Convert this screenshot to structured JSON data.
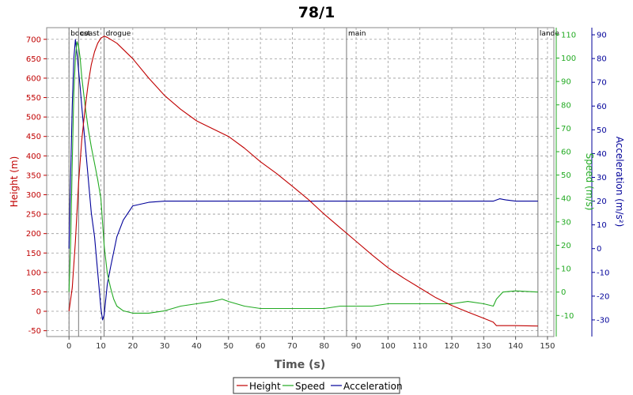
{
  "chart_data": {
    "type": "line",
    "title": "78/1",
    "xlabel": "Time (s)",
    "xlim": [
      -7,
      152
    ],
    "xticks": [
      0,
      10,
      20,
      30,
      40,
      50,
      60,
      70,
      80,
      90,
      100,
      110,
      120,
      130,
      140,
      150
    ],
    "axes": {
      "height": {
        "label": "Height (m)",
        "ylim": [
          -65,
          730
        ],
        "ticks": [
          -50,
          0,
          50,
          100,
          150,
          200,
          250,
          300,
          350,
          400,
          450,
          500,
          550,
          600,
          650,
          700
        ],
        "color": "#c00000",
        "position": "left"
      },
      "speed": {
        "label": "Speed (m/s)",
        "ylim": [
          -19,
          113
        ],
        "ticks": [
          -10,
          0,
          10,
          20,
          30,
          40,
          50,
          60,
          70,
          80,
          90,
          100,
          110
        ],
        "color": "#22aa22",
        "position": "right-inner"
      },
      "acceleration": {
        "label": "Acceleration (m/s²)",
        "ylim": [
          -37,
          93
        ],
        "ticks": [
          -30,
          -20,
          -10,
          0,
          10,
          20,
          30,
          40,
          50,
          60,
          70,
          80,
          90
        ],
        "color": "#000099",
        "position": "right-outer"
      }
    },
    "events": [
      {
        "label": "boost",
        "t": 0
      },
      {
        "label": "coast",
        "t": 3
      },
      {
        "label": "drogue",
        "t": 11
      },
      {
        "label": "main",
        "t": 87
      },
      {
        "label": "lande",
        "t": 147
      }
    ],
    "series": [
      {
        "name": "Height",
        "axis": "height",
        "color": "#c00000",
        "x": [
          0,
          1,
          2,
          3,
          4,
          5,
          6,
          7,
          8,
          9,
          10,
          11,
          12,
          15,
          20,
          25,
          30,
          35,
          40,
          45,
          50,
          55,
          60,
          65,
          70,
          75,
          80,
          85,
          90,
          95,
          100,
          105,
          110,
          115,
          120,
          125,
          130,
          133,
          134,
          140,
          147
        ],
        "y": [
          0,
          60,
          180,
          330,
          440,
          520,
          585,
          635,
          668,
          690,
          703,
          708,
          705,
          690,
          650,
          600,
          555,
          520,
          490,
          470,
          450,
          420,
          385,
          355,
          322,
          288,
          250,
          215,
          180,
          145,
          112,
          85,
          60,
          35,
          15,
          -2,
          -18,
          -28,
          -37,
          -37,
          -38
        ]
      },
      {
        "name": "Speed",
        "axis": "speed",
        "color": "#22aa22",
        "x": [
          0,
          0.5,
          1,
          1.5,
          2,
          2.5,
          3,
          3.5,
          4,
          5,
          6,
          7,
          8,
          9,
          10,
          11,
          12,
          13,
          14,
          15,
          17,
          20,
          25,
          30,
          35,
          40,
          45,
          48,
          50,
          55,
          60,
          65,
          70,
          75,
          80,
          85,
          90,
          95,
          100,
          105,
          110,
          115,
          120,
          125,
          130,
          133,
          134,
          136,
          140,
          147
        ],
        "y": [
          0,
          20,
          55,
          85,
          100,
          107,
          105,
          100,
          92,
          80,
          70,
          62,
          55,
          48,
          40,
          20,
          8,
          2,
          -3,
          -6,
          -8,
          -9,
          -9,
          -8,
          -6,
          -5,
          -4,
          -3,
          -4,
          -6,
          -7,
          -7,
          -7,
          -7,
          -7,
          -6,
          -6,
          -6,
          -5,
          -5,
          -5,
          -5,
          -5,
          -4,
          -5,
          -6,
          -3,
          0,
          0.5,
          0
        ]
      },
      {
        "name": "Acceleration",
        "axis": "acceleration",
        "color": "#000099",
        "x": [
          0,
          0.5,
          1,
          1.5,
          2,
          2.5,
          3,
          3.5,
          4,
          5,
          6,
          7,
          8,
          9,
          10,
          10.5,
          11,
          12,
          13,
          15,
          17,
          20,
          25,
          30,
          40,
          50,
          60,
          70,
          80,
          90,
          100,
          110,
          120,
          130,
          133,
          135,
          137,
          140,
          147
        ],
        "y": [
          0,
          30,
          60,
          80,
          88,
          82,
          75,
          68,
          60,
          45,
          30,
          15,
          5,
          -10,
          -25,
          -30,
          -28,
          -15,
          -8,
          5,
          12,
          18,
          19.5,
          20,
          20,
          20,
          20,
          20,
          20,
          20,
          20,
          20,
          20,
          20,
          20,
          21,
          20.5,
          20,
          20
        ]
      }
    ],
    "legend": {
      "position": "bottom-center",
      "entries": [
        "Height",
        "Speed",
        "Acceleration"
      ]
    },
    "grid": true
  }
}
